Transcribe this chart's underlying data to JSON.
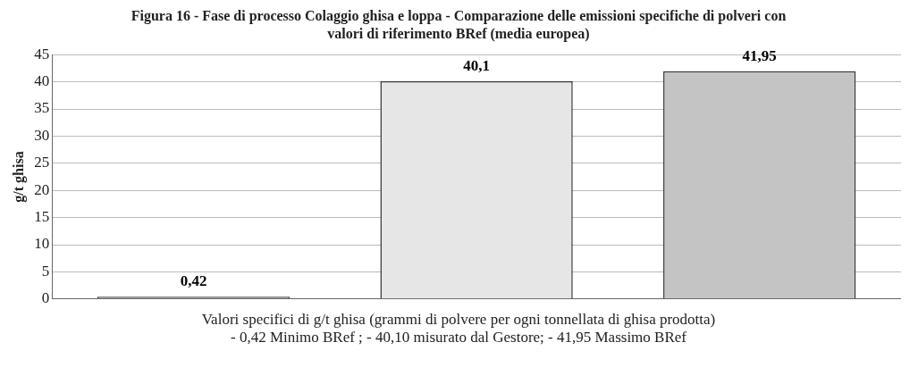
{
  "chart_data": {
    "type": "bar",
    "title": "Figura 16 - Fase di processo Colaggio ghisa e loppa - Comparazione delle emissioni specifiche di polveri con valori di riferimento BRef (media europea)",
    "ylabel": "g/t ghisa",
    "xlabel": "Valori specifici di g/t ghisa (grammi di polvere per ogni tonnellata di ghisa prodotta)",
    "annotations": [
      "- 0,42 Minimo BRef ; - 40,10 misurato dal Gestore; - 41,95 Massimo BRef"
    ],
    "categories": [
      null
    ],
    "series": [
      {
        "color": "#9a9a9a",
        "values": [
          0.42
        ],
        "value_labels": [
          "0,42"
        ]
      },
      {
        "color": "#e6e6e6",
        "values": [
          40.1
        ],
        "value_labels": [
          "40,1"
        ]
      },
      {
        "color": "#c4c4c4",
        "values": [
          41.95
        ],
        "value_labels": [
          "41,95"
        ]
      }
    ],
    "ylim": [
      0,
      45
    ],
    "yticks": [
      0,
      5,
      10,
      15,
      20,
      25,
      30,
      35,
      40,
      45
    ],
    "grid": "y",
    "legend": false
  }
}
